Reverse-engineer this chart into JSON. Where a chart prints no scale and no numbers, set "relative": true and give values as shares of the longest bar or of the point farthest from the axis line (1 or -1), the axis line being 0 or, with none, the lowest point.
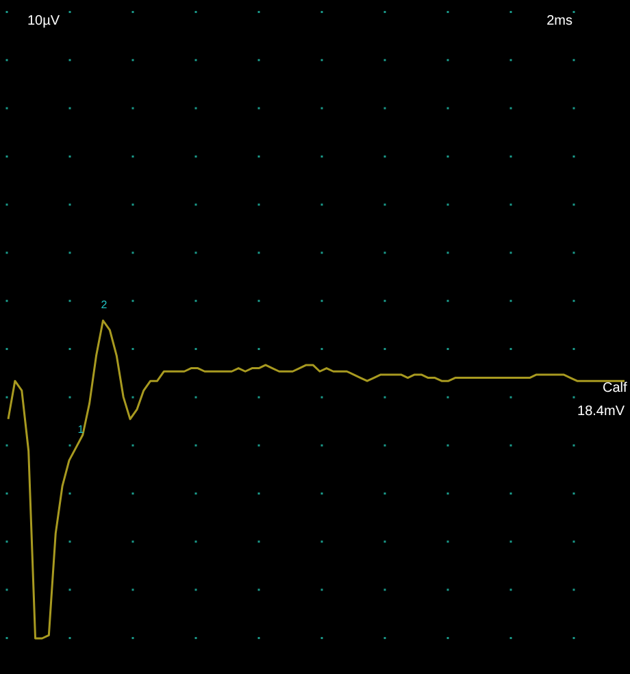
{
  "chart_data": {
    "type": "line",
    "relative": true,
    "grid": true,
    "marker": "none",
    "categories": [
      null,
      null,
      null,
      null,
      null,
      null,
      null,
      null,
      null,
      null,
      null,
      null,
      null,
      null,
      null,
      null,
      null,
      null,
      null,
      null,
      null,
      null,
      null,
      null,
      null,
      null,
      null,
      null,
      null,
      null,
      null,
      null,
      null,
      null,
      null,
      null,
      null,
      null,
      null,
      null,
      null,
      null,
      null,
      null,
      null,
      null,
      null,
      null,
      null,
      null,
      null,
      null,
      null,
      null,
      null,
      null,
      null,
      null,
      null,
      null,
      null,
      null,
      null,
      null,
      null,
      null,
      null,
      null,
      null,
      null,
      null,
      null,
      null,
      null,
      null,
      null,
      null,
      null,
      null,
      null,
      null,
      null,
      null,
      null,
      null,
      null,
      null,
      null,
      null,
      null,
      null,
      null
    ],
    "series": [
      {
        "color": "#a89a20",
        "values": [
          0.69,
          0.81,
          0.78,
          0.59,
          0,
          0,
          0.01,
          0.33,
          0.48,
          0.56,
          0.6,
          0.64,
          0.74,
          0.89,
          1,
          0.97,
          0.89,
          0.76,
          0.69,
          0.72,
          0.78,
          0.81,
          0.81,
          0.84,
          0.84,
          0.84,
          0.84,
          0.85,
          0.85,
          0.84,
          0.84,
          0.84,
          0.84,
          0.84,
          0.85,
          0.84,
          0.85,
          0.85,
          0.86,
          0.85,
          0.84,
          0.84,
          0.84,
          0.85,
          0.86,
          0.86,
          0.84,
          0.85,
          0.84,
          0.84,
          0.84,
          0.83,
          0.82,
          0.81,
          0.82,
          0.83,
          0.83,
          0.83,
          0.83,
          0.82,
          0.83,
          0.83,
          0.82,
          0.82,
          0.81,
          0.81,
          0.82,
          0.82,
          0.82,
          0.82,
          0.82,
          0.82,
          0.82,
          0.82,
          0.82,
          0.82,
          0.82,
          0.82,
          0.83,
          0.83,
          0.83,
          0.83,
          0.83,
          0.82,
          0.81,
          0.81,
          0.81,
          0.81,
          0.81,
          0.81,
          0.81,
          0.81
        ]
      }
    ],
    "annotations": [
      "10µV",
      "2ms",
      "1",
      "2",
      "Calf",
      "18.4mV"
    ]
  }
}
